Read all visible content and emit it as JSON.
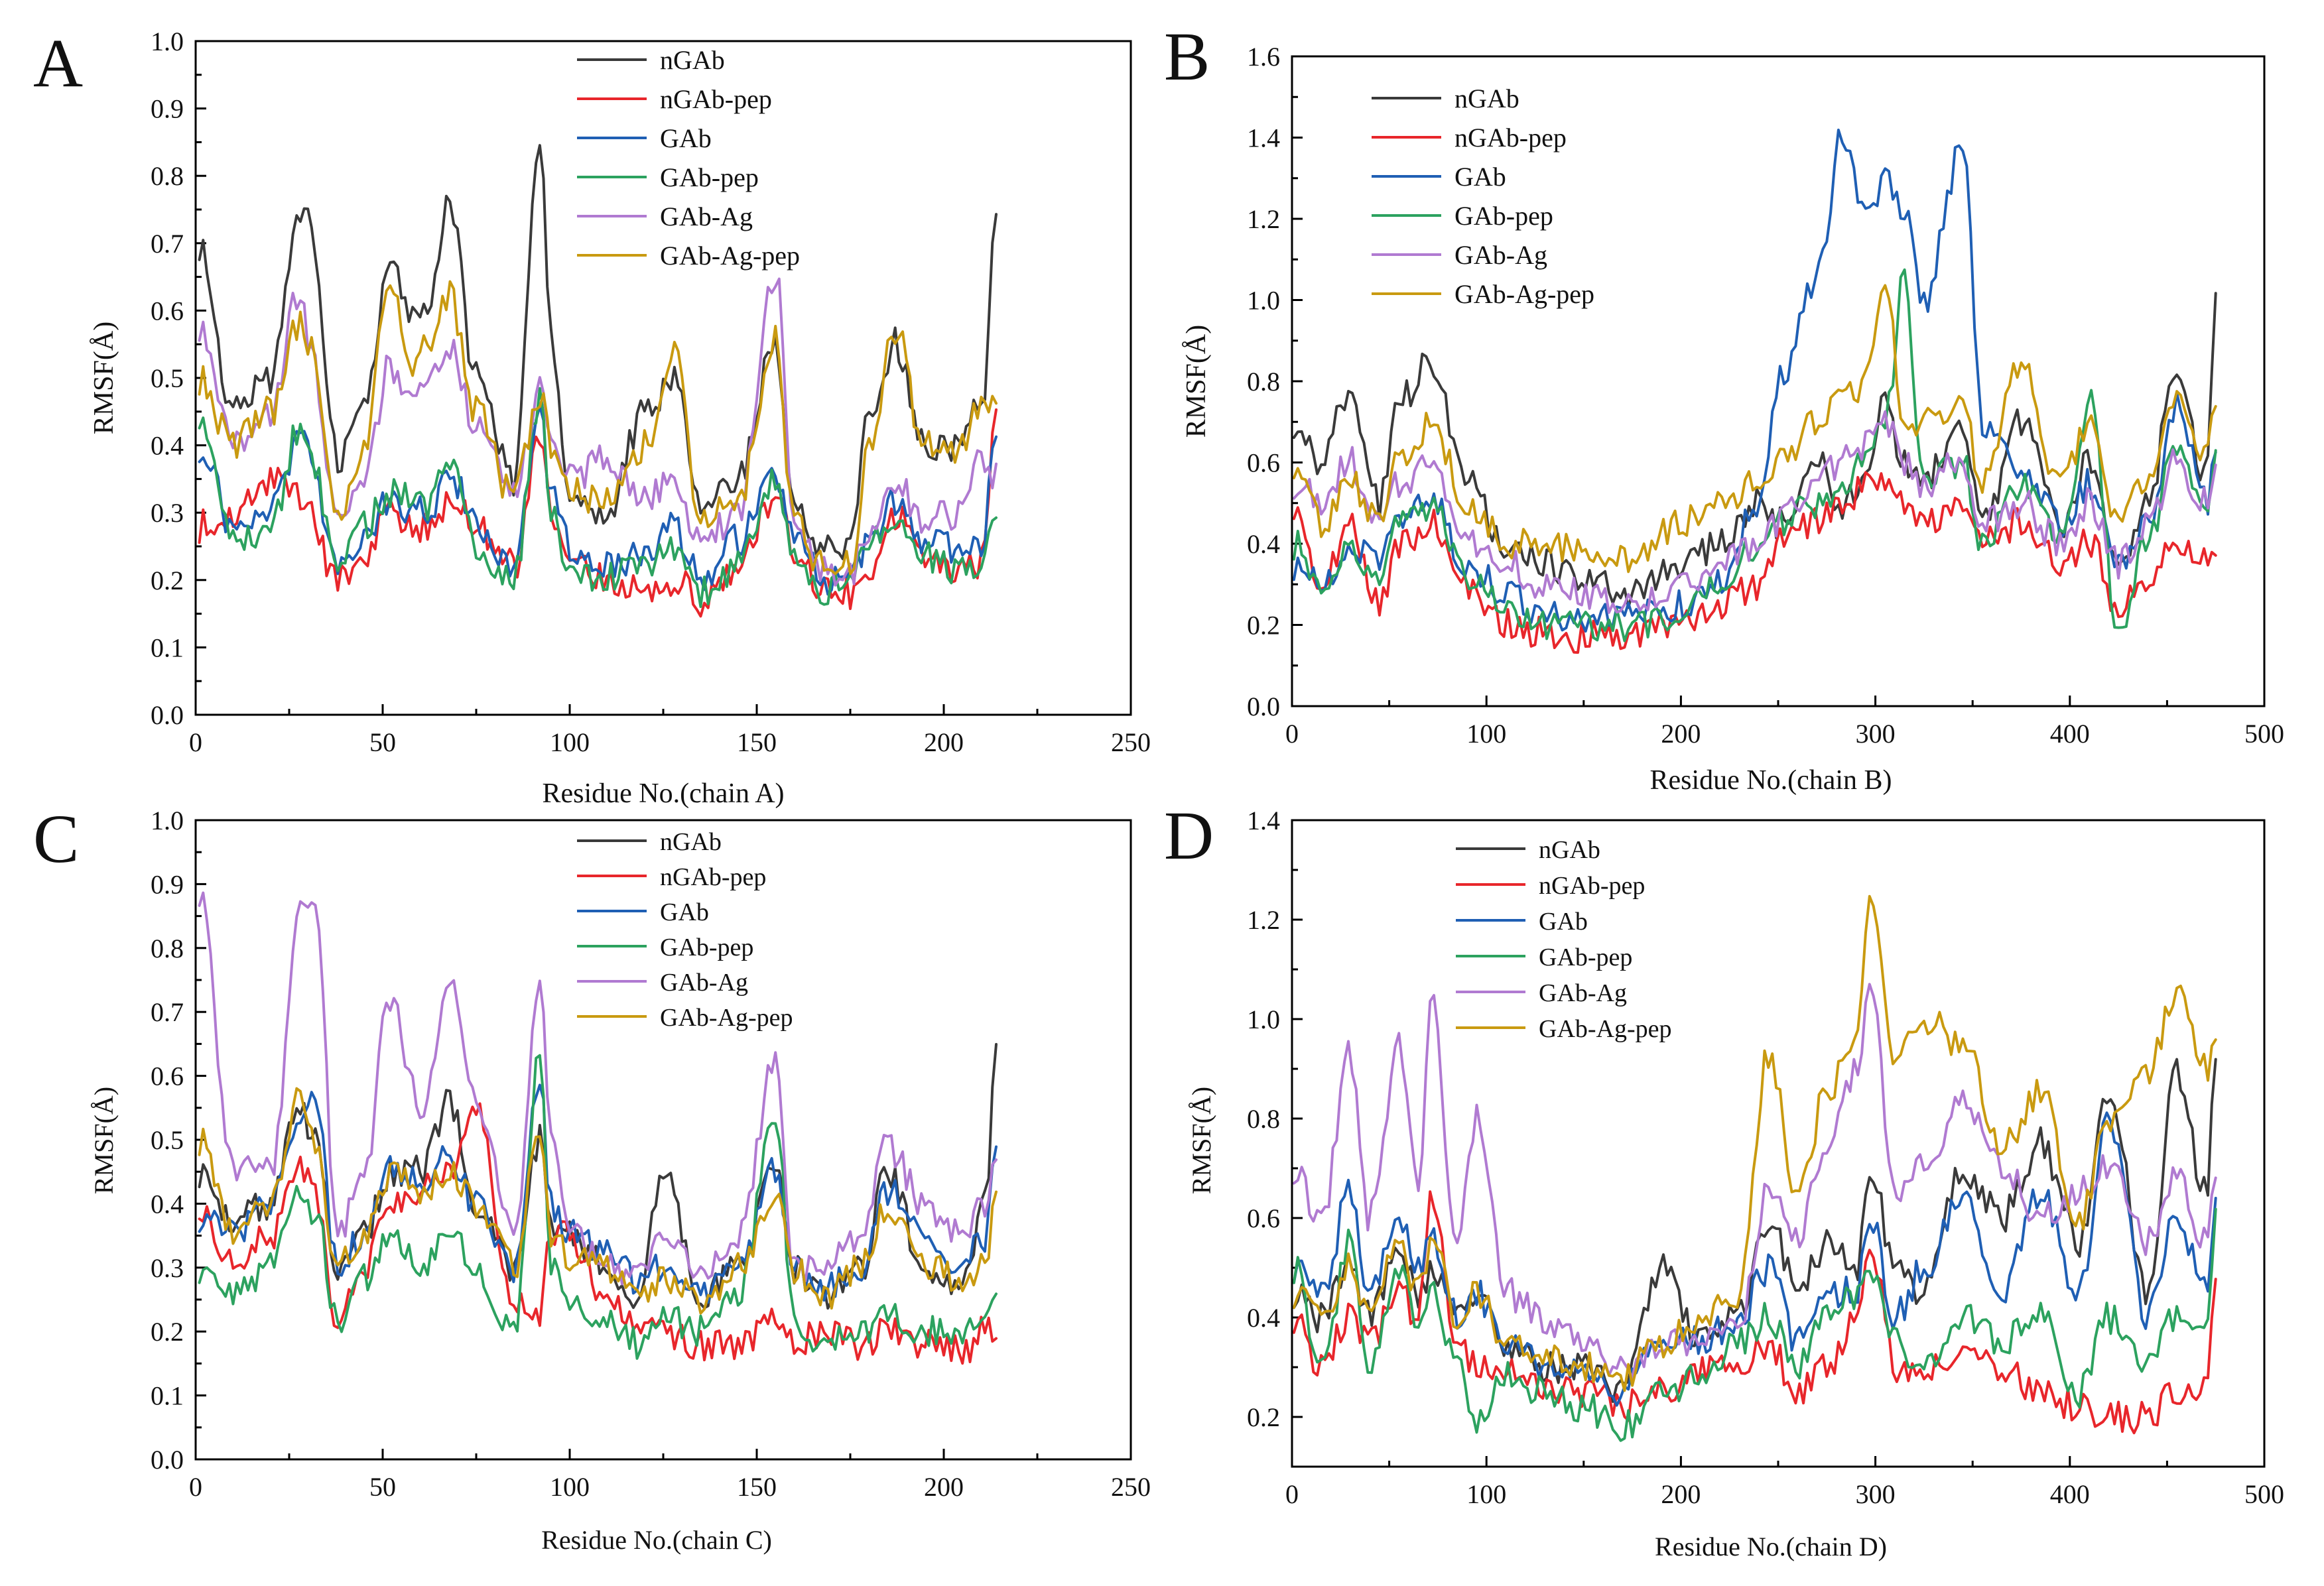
{
  "chart_data": [
    {
      "type": "line",
      "panel_label": "A",
      "xlabel": "Residue No.(chain A)",
      "ylabel": "RMSF(Å)",
      "xlim": [
        0,
        250
      ],
      "ylim": [
        0,
        1.0
      ],
      "xticks": [
        0,
        50,
        100,
        150,
        200,
        250
      ],
      "yticks": [
        0.0,
        0.1,
        0.2,
        0.3,
        0.4,
        0.5,
        0.6,
        0.7,
        0.8,
        0.9,
        1.0
      ],
      "ytick_decimals": 1,
      "legend_position": "top-center",
      "x": [
        1,
        10,
        20,
        28,
        30,
        38,
        45,
        52,
        58,
        62,
        68,
        75,
        85,
        92,
        95,
        100,
        110,
        120,
        128,
        135,
        145,
        155,
        160,
        168,
        175,
        180,
        187,
        195,
        202,
        210,
        214
      ],
      "series": [
        {
          "name": "nGAb",
          "color": "#3a3a3a",
          "values": [
            0.7,
            0.45,
            0.5,
            0.73,
            0.73,
            0.38,
            0.45,
            0.68,
            0.6,
            0.62,
            0.76,
            0.5,
            0.35,
            0.85,
            0.55,
            0.33,
            0.3,
            0.45,
            0.5,
            0.3,
            0.35,
            0.55,
            0.3,
            0.25,
            0.25,
            0.45,
            0.55,
            0.4,
            0.4,
            0.45,
            0.74
          ]
        },
        {
          "name": "nGAb-pep",
          "color": "#e8262b",
          "values": [
            0.28,
            0.3,
            0.35,
            0.32,
            0.3,
            0.2,
            0.24,
            0.3,
            0.28,
            0.28,
            0.32,
            0.28,
            0.22,
            0.4,
            0.3,
            0.22,
            0.2,
            0.18,
            0.2,
            0.17,
            0.22,
            0.32,
            0.25,
            0.18,
            0.18,
            0.22,
            0.3,
            0.22,
            0.22,
            0.22,
            0.47
          ]
        },
        {
          "name": "GAb",
          "color": "#1f5fb4",
          "values": [
            0.4,
            0.28,
            0.3,
            0.4,
            0.4,
            0.22,
            0.27,
            0.32,
            0.3,
            0.3,
            0.36,
            0.28,
            0.22,
            0.45,
            0.32,
            0.25,
            0.22,
            0.24,
            0.28,
            0.2,
            0.26,
            0.36,
            0.27,
            0.2,
            0.22,
            0.25,
            0.32,
            0.26,
            0.25,
            0.25,
            0.4
          ]
        },
        {
          "name": "GAb-pep",
          "color": "#2ca25f",
          "values": [
            0.45,
            0.25,
            0.28,
            0.43,
            0.4,
            0.22,
            0.28,
            0.33,
            0.32,
            0.3,
            0.38,
            0.25,
            0.2,
            0.47,
            0.3,
            0.22,
            0.2,
            0.22,
            0.25,
            0.18,
            0.22,
            0.35,
            0.25,
            0.18,
            0.2,
            0.25,
            0.3,
            0.24,
            0.22,
            0.22,
            0.3
          ]
        },
        {
          "name": "GAb-Ag",
          "color": "#b07ad1",
          "values": [
            0.58,
            0.4,
            0.45,
            0.63,
            0.55,
            0.3,
            0.35,
            0.52,
            0.45,
            0.5,
            0.55,
            0.42,
            0.32,
            0.48,
            0.4,
            0.35,
            0.38,
            0.32,
            0.35,
            0.25,
            0.3,
            0.66,
            0.28,
            0.22,
            0.2,
            0.28,
            0.35,
            0.28,
            0.3,
            0.38,
            0.35
          ]
        },
        {
          "name": "GAb-Ag-pep",
          "color": "#c99a10",
          "values": [
            0.5,
            0.4,
            0.45,
            0.58,
            0.55,
            0.3,
            0.4,
            0.65,
            0.5,
            0.55,
            0.62,
            0.45,
            0.32,
            0.48,
            0.4,
            0.33,
            0.32,
            0.4,
            0.53,
            0.3,
            0.32,
            0.56,
            0.28,
            0.22,
            0.22,
            0.4,
            0.57,
            0.4,
            0.38,
            0.45,
            0.46
          ]
        }
      ]
    },
    {
      "type": "line",
      "panel_label": "B",
      "xlabel": "Residue No.(chain B)",
      "ylabel": "RMSF(Å)",
      "xlim": [
        0,
        500
      ],
      "ylim": [
        0,
        1.6
      ],
      "xticks": [
        0,
        100,
        200,
        300,
        400,
        500
      ],
      "yticks": [
        0.0,
        0.2,
        0.4,
        0.6,
        0.8,
        1.0,
        1.2,
        1.4,
        1.6
      ],
      "ytick_decimals": 1,
      "legend_position": "top-left",
      "x": [
        1,
        15,
        30,
        45,
        55,
        72,
        90,
        110,
        130,
        150,
        175,
        200,
        220,
        240,
        250,
        270,
        283,
        295,
        305,
        315,
        325,
        345,
        355,
        375,
        395,
        410,
        425,
        440,
        455,
        470,
        475
      ],
      "series": [
        {
          "name": "nGAb",
          "color": "#3a3a3a",
          "values": [
            0.7,
            0.6,
            0.78,
            0.5,
            0.75,
            0.85,
            0.55,
            0.4,
            0.35,
            0.3,
            0.28,
            0.35,
            0.4,
            0.5,
            0.45,
            0.6,
            0.5,
            0.55,
            0.75,
            0.6,
            0.55,
            0.7,
            0.45,
            0.7,
            0.45,
            0.6,
            0.35,
            0.5,
            0.85,
            0.55,
            0.98
          ]
        },
        {
          "name": "nGAb-pep",
          "color": "#e8262b",
          "values": [
            0.5,
            0.3,
            0.45,
            0.25,
            0.4,
            0.45,
            0.3,
            0.2,
            0.18,
            0.17,
            0.18,
            0.2,
            0.25,
            0.3,
            0.4,
            0.45,
            0.5,
            0.55,
            0.55,
            0.5,
            0.45,
            0.5,
            0.4,
            0.45,
            0.35,
            0.4,
            0.25,
            0.3,
            0.4,
            0.35,
            0.38
          ]
        },
        {
          "name": "GAb",
          "color": "#1f5fb4",
          "values": [
            0.35,
            0.3,
            0.4,
            0.35,
            0.45,
            0.5,
            0.35,
            0.28,
            0.22,
            0.22,
            0.22,
            0.25,
            0.3,
            0.5,
            0.8,
            1.05,
            1.4,
            1.2,
            1.3,
            1.2,
            1.0,
            1.38,
            0.7,
            0.6,
            0.45,
            0.55,
            0.35,
            0.45,
            0.75,
            0.5,
            0.6
          ]
        },
        {
          "name": "GAb-pep",
          "color": "#2ca25f",
          "values": [
            0.4,
            0.3,
            0.4,
            0.3,
            0.45,
            0.5,
            0.32,
            0.25,
            0.2,
            0.2,
            0.2,
            0.22,
            0.3,
            0.4,
            0.45,
            0.5,
            0.55,
            0.6,
            0.7,
            1.05,
            0.55,
            0.6,
            0.4,
            0.55,
            0.4,
            0.75,
            0.2,
            0.4,
            0.65,
            0.45,
            0.65
          ]
        },
        {
          "name": "GAb-Ag",
          "color": "#b07ad1",
          "values": [
            0.55,
            0.5,
            0.6,
            0.45,
            0.55,
            0.6,
            0.4,
            0.35,
            0.3,
            0.28,
            0.25,
            0.3,
            0.35,
            0.4,
            0.45,
            0.55,
            0.6,
            0.65,
            0.7,
            0.6,
            0.55,
            0.6,
            0.45,
            0.5,
            0.4,
            0.5,
            0.35,
            0.45,
            0.6,
            0.5,
            0.58
          ]
        },
        {
          "name": "GAb-Ag-pep",
          "color": "#c99a10",
          "values": [
            0.6,
            0.45,
            0.55,
            0.45,
            0.6,
            0.7,
            0.5,
            0.4,
            0.4,
            0.38,
            0.35,
            0.45,
            0.5,
            0.55,
            0.6,
            0.7,
            0.75,
            0.8,
            1.05,
            0.7,
            0.7,
            0.75,
            0.55,
            0.85,
            0.55,
            0.7,
            0.45,
            0.55,
            0.75,
            0.6,
            0.77
          ]
        }
      ]
    },
    {
      "type": "line",
      "panel_label": "C",
      "xlabel": "Residue No.(chain C)",
      "ylabel": "RMSF(Å)",
      "xlim": [
        0,
        250
      ],
      "ylim": [
        0,
        1.0
      ],
      "xticks": [
        0,
        50,
        100,
        150,
        200,
        250
      ],
      "yticks": [
        0.0,
        0.1,
        0.2,
        0.3,
        0.4,
        0.5,
        0.6,
        0.7,
        0.8,
        0.9,
        1.0
      ],
      "ytick_decimals": 1,
      "legend_position": "top-center",
      "x": [
        1,
        10,
        20,
        28,
        32,
        38,
        45,
        52,
        60,
        68,
        75,
        85,
        92,
        95,
        100,
        110,
        118,
        125,
        135,
        145,
        155,
        160,
        168,
        178,
        185,
        195,
        205,
        211,
        214
      ],
      "series": [
        {
          "name": "nGAb",
          "color": "#3a3a3a",
          "values": [
            0.45,
            0.38,
            0.4,
            0.55,
            0.5,
            0.3,
            0.35,
            0.45,
            0.45,
            0.56,
            0.4,
            0.3,
            0.5,
            0.35,
            0.35,
            0.3,
            0.25,
            0.45,
            0.25,
            0.3,
            0.45,
            0.3,
            0.25,
            0.3,
            0.45,
            0.3,
            0.27,
            0.4,
            0.65
          ]
        },
        {
          "name": "nGAb-pep",
          "color": "#e8262b",
          "values": [
            0.4,
            0.3,
            0.35,
            0.45,
            0.42,
            0.22,
            0.3,
            0.4,
            0.42,
            0.45,
            0.54,
            0.25,
            0.23,
            0.35,
            0.35,
            0.25,
            0.22,
            0.2,
            0.18,
            0.18,
            0.22,
            0.18,
            0.2,
            0.18,
            0.2,
            0.18,
            0.17,
            0.2,
            0.21
          ]
        },
        {
          "name": "GAb",
          "color": "#1f5fb4",
          "values": [
            0.38,
            0.35,
            0.4,
            0.52,
            0.56,
            0.3,
            0.35,
            0.45,
            0.44,
            0.47,
            0.4,
            0.3,
            0.6,
            0.4,
            0.35,
            0.32,
            0.28,
            0.3,
            0.26,
            0.3,
            0.45,
            0.3,
            0.27,
            0.3,
            0.42,
            0.35,
            0.3,
            0.35,
            0.48
          ]
        },
        {
          "name": "GAb-pep",
          "color": "#2ca25f",
          "values": [
            0.3,
            0.25,
            0.3,
            0.42,
            0.38,
            0.22,
            0.28,
            0.35,
            0.3,
            0.35,
            0.3,
            0.2,
            0.64,
            0.3,
            0.25,
            0.22,
            0.18,
            0.22,
            0.2,
            0.25,
            0.55,
            0.22,
            0.18,
            0.2,
            0.22,
            0.2,
            0.2,
            0.22,
            0.27
          ]
        },
        {
          "name": "GAb-Ag",
          "color": "#b07ad1",
          "values": [
            0.89,
            0.45,
            0.45,
            0.85,
            0.88,
            0.35,
            0.45,
            0.72,
            0.55,
            0.75,
            0.55,
            0.35,
            0.75,
            0.5,
            0.35,
            0.3,
            0.28,
            0.35,
            0.3,
            0.35,
            0.62,
            0.3,
            0.3,
            0.35,
            0.49,
            0.4,
            0.35,
            0.4,
            0.45
          ]
        },
        {
          "name": "GAb-Ag-pep",
          "color": "#c99a10",
          "values": [
            0.5,
            0.35,
            0.4,
            0.57,
            0.5,
            0.3,
            0.35,
            0.45,
            0.42,
            0.45,
            0.4,
            0.3,
            0.5,
            0.35,
            0.32,
            0.3,
            0.25,
            0.28,
            0.25,
            0.3,
            0.4,
            0.3,
            0.25,
            0.3,
            0.4,
            0.3,
            0.28,
            0.3,
            0.42
          ]
        }
      ]
    },
    {
      "type": "line",
      "panel_label": "D",
      "xlabel": "Residue No.(chain D)",
      "ylabel": "RMSF(Å)",
      "xlim": [
        0,
        500
      ],
      "ylim": [
        0.1,
        1.4
      ],
      "xticks": [
        0,
        100,
        200,
        300,
        400,
        500
      ],
      "yticks": [
        0.2,
        0.4,
        0.6,
        0.8,
        1.0,
        1.2,
        1.4
      ],
      "ytick_decimals": 1,
      "legend_position": "top-left",
      "x": [
        1,
        15,
        30,
        40,
        55,
        65,
        72,
        85,
        95,
        110,
        130,
        150,
        170,
        190,
        210,
        230,
        245,
        260,
        275,
        290,
        298,
        310,
        325,
        345,
        365,
        385,
        405,
        420,
        440,
        455,
        470,
        475
      ],
      "series": [
        {
          "name": "nGAb",
          "color": "#3a3a3a",
          "values": [
            0.45,
            0.4,
            0.5,
            0.4,
            0.55,
            0.45,
            0.5,
            0.4,
            0.45,
            0.35,
            0.3,
            0.3,
            0.25,
            0.5,
            0.35,
            0.4,
            0.6,
            0.45,
            0.55,
            0.5,
            0.7,
            0.5,
            0.45,
            0.7,
            0.6,
            0.75,
            0.55,
            0.85,
            0.45,
            0.9,
            0.65,
            0.92
          ]
        },
        {
          "name": "nGAb-pep",
          "color": "#e8262b",
          "values": [
            0.4,
            0.3,
            0.4,
            0.35,
            0.45,
            0.4,
            0.65,
            0.35,
            0.3,
            0.3,
            0.25,
            0.25,
            0.22,
            0.25,
            0.3,
            0.3,
            0.35,
            0.25,
            0.3,
            0.4,
            0.55,
            0.3,
            0.28,
            0.35,
            0.3,
            0.25,
            0.22,
            0.2,
            0.2,
            0.25,
            0.25,
            0.45
          ]
        },
        {
          "name": "GAb",
          "color": "#1f5fb4",
          "values": [
            0.5,
            0.45,
            0.65,
            0.45,
            0.6,
            0.5,
            0.55,
            0.4,
            0.45,
            0.35,
            0.3,
            0.3,
            0.25,
            0.35,
            0.35,
            0.4,
            0.5,
            0.35,
            0.45,
            0.45,
            0.6,
            0.4,
            0.5,
            0.65,
            0.45,
            0.65,
            0.45,
            0.8,
            0.4,
            0.6,
            0.45,
            0.65
          ]
        },
        {
          "name": "GAb-pep",
          "color": "#2ca25f",
          "values": [
            0.5,
            0.3,
            0.55,
            0.3,
            0.5,
            0.4,
            0.45,
            0.3,
            0.2,
            0.28,
            0.25,
            0.22,
            0.18,
            0.25,
            0.28,
            0.35,
            0.4,
            0.3,
            0.4,
            0.45,
            0.5,
            0.35,
            0.3,
            0.4,
            0.35,
            0.4,
            0.25,
            0.4,
            0.3,
            0.4,
            0.35,
            0.6
          ]
        },
        {
          "name": "GAb-Ag",
          "color": "#b07ad1",
          "values": [
            0.7,
            0.6,
            0.93,
            0.6,
            0.95,
            0.65,
            1.04,
            0.55,
            0.8,
            0.45,
            0.4,
            0.35,
            0.3,
            0.35,
            0.35,
            0.4,
            0.65,
            0.55,
            0.75,
            0.9,
            1.08,
            0.65,
            0.7,
            0.85,
            0.7,
            0.6,
            0.65,
            0.7,
            0.55,
            0.7,
            0.55,
            0.7
          ]
        },
        {
          "name": "GAb-Ag-pep",
          "color": "#c99a10",
          "values": [
            0.45,
            0.4,
            0.5,
            0.4,
            0.55,
            0.45,
            0.55,
            0.4,
            0.45,
            0.35,
            0.32,
            0.3,
            0.28,
            0.35,
            0.4,
            0.45,
            0.93,
            0.65,
            0.85,
            0.95,
            1.26,
            0.9,
            1.0,
            0.95,
            0.75,
            0.85,
            0.6,
            0.8,
            0.9,
            1.06,
            0.9,
            0.95
          ]
        }
      ]
    }
  ]
}
